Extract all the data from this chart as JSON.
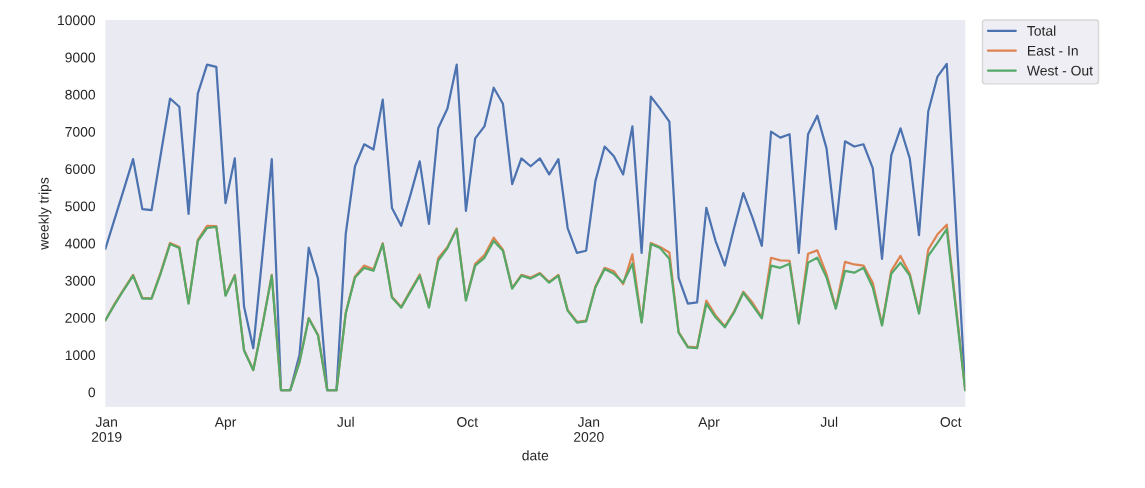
{
  "chart_data": {
    "type": "line",
    "xlabel": "date",
    "ylabel": "weekly trips",
    "x": [
      "2018-12-31",
      "2019-01-07",
      "2019-01-14",
      "2019-01-21",
      "2019-01-28",
      "2019-02-04",
      "2019-02-11",
      "2019-02-18",
      "2019-02-25",
      "2019-03-04",
      "2019-03-11",
      "2019-03-18",
      "2019-03-25",
      "2019-04-01",
      "2019-04-08",
      "2019-04-15",
      "2019-04-22",
      "2019-04-29",
      "2019-05-06",
      "2019-05-13",
      "2019-05-20",
      "2019-05-27",
      "2019-06-03",
      "2019-06-10",
      "2019-06-17",
      "2019-06-24",
      "2019-07-01",
      "2019-07-08",
      "2019-07-15",
      "2019-07-22",
      "2019-07-29",
      "2019-08-05",
      "2019-08-12",
      "2019-08-19",
      "2019-08-26",
      "2019-09-02",
      "2019-09-09",
      "2019-09-16",
      "2019-09-23",
      "2019-09-30",
      "2019-10-07",
      "2019-10-14",
      "2019-10-21",
      "2019-10-28",
      "2019-11-04",
      "2019-11-11",
      "2019-11-18",
      "2019-11-25",
      "2019-12-02",
      "2019-12-09",
      "2019-12-16",
      "2019-12-23",
      "2019-12-30",
      "2020-01-06",
      "2020-01-13",
      "2020-01-20",
      "2020-01-27",
      "2020-02-03",
      "2020-02-10",
      "2020-02-17",
      "2020-02-24",
      "2020-03-02",
      "2020-03-09",
      "2020-03-16",
      "2020-03-23",
      "2020-03-30",
      "2020-04-06",
      "2020-04-13",
      "2020-04-20",
      "2020-04-27",
      "2020-05-04",
      "2020-05-11",
      "2020-05-18",
      "2020-05-25",
      "2020-06-01",
      "2020-06-08",
      "2020-06-15",
      "2020-06-22",
      "2020-06-29",
      "2020-07-06",
      "2020-07-13",
      "2020-07-20",
      "2020-07-27",
      "2020-08-03",
      "2020-08-10",
      "2020-08-17",
      "2020-08-24",
      "2020-08-31",
      "2020-09-07",
      "2020-09-14",
      "2020-09-21",
      "2020-09-28",
      "2020-10-05",
      "2020-10-12"
    ],
    "series": [
      {
        "name": "Total",
        "color": "#4c72b0",
        "values": [
          3850,
          4650,
          5450,
          6260,
          4920,
          4890,
          6400,
          7890,
          7670,
          4790,
          8020,
          8800,
          8740,
          5080,
          6280,
          2300,
          1180,
          3700,
          6260,
          50,
          50,
          1000,
          3880,
          3050,
          50,
          50,
          4250,
          6070,
          6660,
          6520,
          7860,
          4950,
          4470,
          5300,
          6200,
          4520,
          7090,
          7620,
          8800,
          4870,
          6820,
          7140,
          8180,
          7750,
          5590,
          6280,
          6070,
          6280,
          5850,
          6260,
          4410,
          3740,
          3800,
          5670,
          6600,
          6340,
          5850,
          7140,
          3740,
          7940,
          7620,
          7270,
          3070,
          2380,
          2410,
          4950,
          4060,
          3400,
          4410,
          5350,
          4680,
          3930,
          7000,
          6840,
          6930,
          3740,
          6930,
          7430,
          6550,
          4380,
          6740,
          6600,
          6660,
          6020,
          3580,
          6360,
          7090,
          6280,
          4220,
          7540,
          8480,
          8820,
          4500,
          50
        ]
      },
      {
        "name": "East - In",
        "color": "#dd8452",
        "values": [
          1930,
          2370,
          2770,
          3150,
          2530,
          2520,
          3230,
          4010,
          3900,
          2400,
          4090,
          4470,
          4460,
          2610,
          3150,
          1130,
          600,
          1820,
          3150,
          50,
          50,
          820,
          1990,
          1540,
          50,
          50,
          2130,
          3110,
          3400,
          3300,
          4000,
          2560,
          2290,
          2730,
          3160,
          2290,
          3600,
          3900,
          4400,
          2480,
          3450,
          3680,
          4150,
          3830,
          2800,
          3150,
          3080,
          3200,
          2960,
          3150,
          2210,
          1890,
          1920,
          2840,
          3340,
          3250,
          2900,
          3700,
          1890,
          4010,
          3900,
          3750,
          1620,
          1220,
          1200,
          2460,
          2060,
          1770,
          2170,
          2700,
          2400,
          2010,
          3610,
          3540,
          3530,
          1870,
          3720,
          3810,
          3170,
          2270,
          3500,
          3430,
          3400,
          2940,
          1820,
          3260,
          3660,
          3180,
          2140,
          3830,
          4240,
          4500,
          2300,
          50
        ]
      },
      {
        "name": "West - Out",
        "color": "#55a868",
        "values": [
          1925,
          2350,
          2750,
          3130,
          2510,
          2510,
          3200,
          3980,
          3870,
          2380,
          4060,
          4410,
          4440,
          2590,
          3130,
          1120,
          590,
          1800,
          3130,
          50,
          50,
          800,
          1980,
          1520,
          50,
          50,
          2110,
          3080,
          3340,
          3260,
          3980,
          2540,
          2270,
          2700,
          3130,
          2270,
          3530,
          3870,
          4380,
          2460,
          3400,
          3610,
          4060,
          3800,
          2780,
          3130,
          3050,
          3180,
          2940,
          3130,
          2190,
          1870,
          1900,
          2810,
          3310,
          3180,
          2940,
          3450,
          1870,
          3980,
          3870,
          3580,
          1600,
          1200,
          1180,
          2380,
          2010,
          1740,
          2140,
          2670,
          2330,
          1980,
          3400,
          3340,
          3450,
          1840,
          3480,
          3610,
          3080,
          2240,
          3260,
          3210,
          3340,
          2810,
          1790,
          3180,
          3480,
          3130,
          2110,
          3660,
          4010,
          4380,
          2200,
          50
        ]
      }
    ],
    "xlim": [
      "2018-12-31",
      "2020-10-12"
    ],
    "xticks": [
      {
        "value": "2019-01-01",
        "label": "Jan\n2019"
      },
      {
        "value": "2019-04-01",
        "label": "Apr"
      },
      {
        "value": "2019-07-01",
        "label": "Jul"
      },
      {
        "value": "2019-10-01",
        "label": "Oct"
      },
      {
        "value": "2020-01-01",
        "label": "Jan\n2020"
      },
      {
        "value": "2020-04-01",
        "label": "Apr"
      },
      {
        "value": "2020-07-01",
        "label": "Jul"
      },
      {
        "value": "2020-10-01",
        "label": "Oct"
      }
    ],
    "ylim": [
      -400,
      10000
    ],
    "yticks": [
      0,
      1000,
      2000,
      3000,
      4000,
      5000,
      6000,
      7000,
      8000,
      9000,
      10000
    ],
    "grid": false,
    "legend": "top right",
    "marker": "none",
    "line_style": "solid"
  }
}
